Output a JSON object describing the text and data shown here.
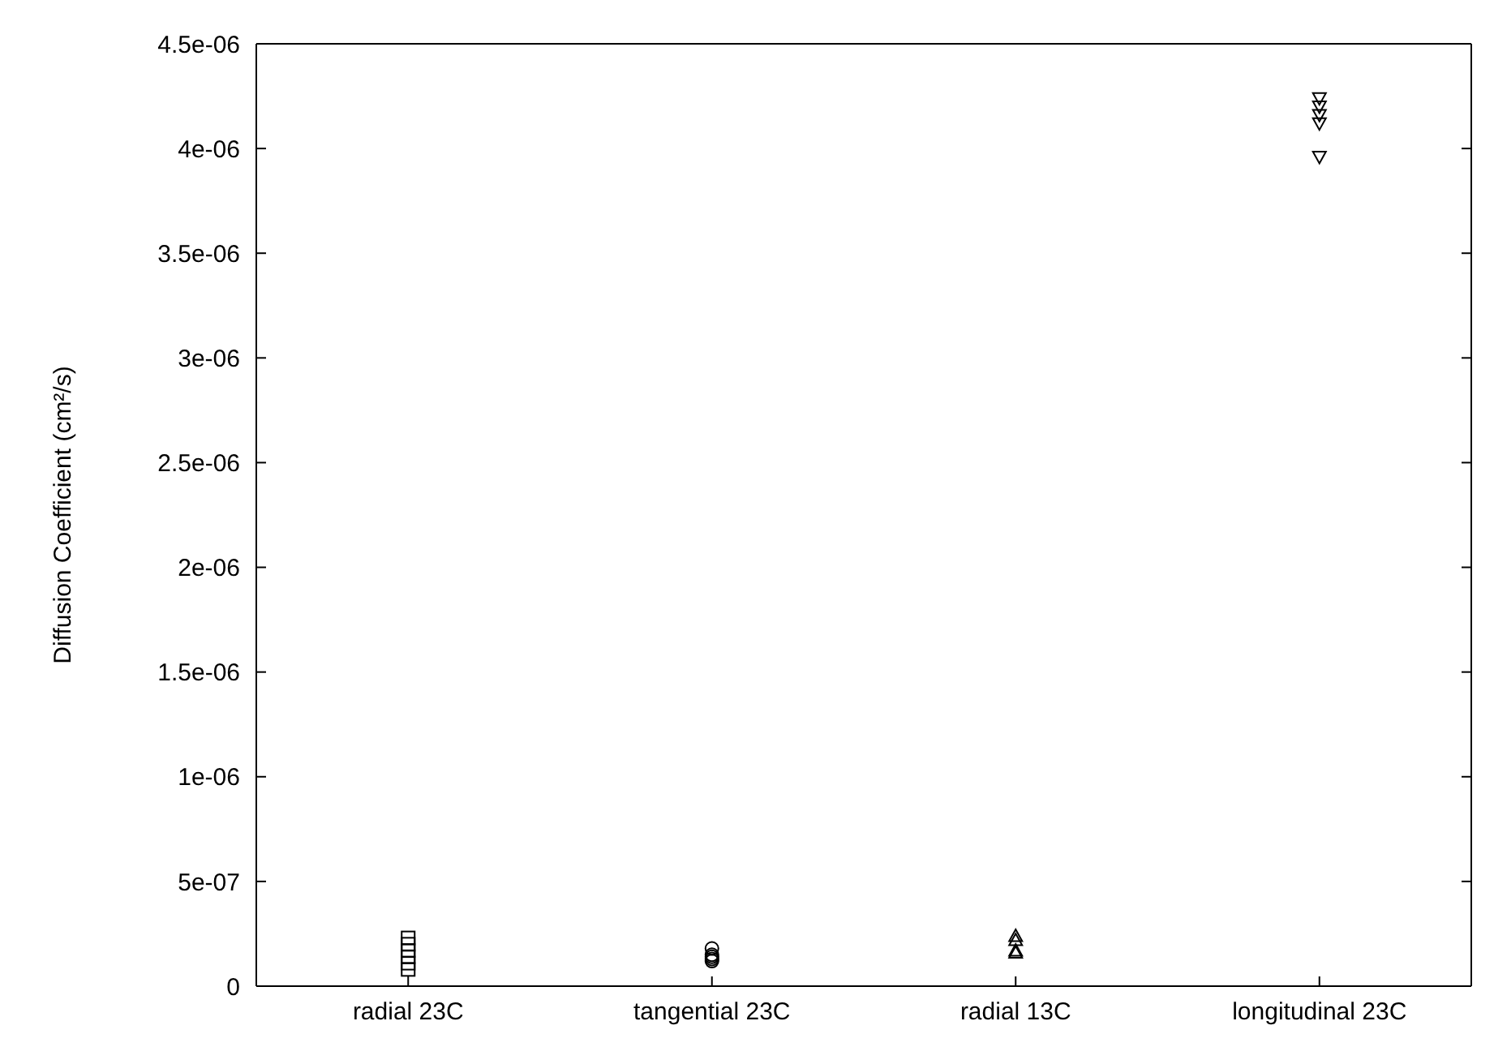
{
  "chart_data": {
    "type": "scatter",
    "ylabel": "Diffusion Coefficient (cm²/s)",
    "categories": [
      "radial 23C",
      "tangential 23C",
      "radial 13C",
      "longitudinal 23C"
    ],
    "series": [
      {
        "color": "#000000",
        "marker": "square",
        "x": [
          "radial 23C",
          "radial 23C",
          "radial 23C",
          "radial 23C",
          "radial 23C",
          "radial 23C"
        ],
        "values": [
          2.3e-07,
          2e-07,
          1.7e-07,
          1.4e-07,
          1.1e-07,
          8e-08
        ]
      },
      {
        "color": "#000000",
        "marker": "circle",
        "x": [
          "tangential 23C",
          "tangential 23C",
          "tangential 23C",
          "tangential 23C",
          "tangential 23C"
        ],
        "values": [
          1.8e-07,
          1.5e-07,
          1.4e-07,
          1.3e-07,
          1.2e-07
        ]
      },
      {
        "color": "#000000",
        "marker": "triangle",
        "x": [
          "radial 13C",
          "radial 13C",
          "radial 13C",
          "radial 13C"
        ],
        "values": [
          2.4e-07,
          2.2e-07,
          1.7e-07,
          1.6e-07
        ]
      },
      {
        "color": "#000000",
        "marker": "triangle-down",
        "x": [
          "longitudinal 23C",
          "longitudinal 23C",
          "longitudinal 23C",
          "longitudinal 23C",
          "longitudinal 23C"
        ],
        "values": [
          4.24e-06,
          4.2e-06,
          4.16e-06,
          4.12e-06,
          3.96e-06
        ]
      }
    ],
    "ylim": [
      0,
      4.5e-06
    ],
    "yticks": [
      0,
      {
        "value": 5e-07,
        "label": "5e-07"
      },
      {
        "value": 1e-06,
        "label": "1e-06"
      },
      {
        "value": 1.5e-06,
        "label": "1.5e-06"
      },
      {
        "value": 2e-06,
        "label": "2e-06"
      },
      {
        "value": 2.5e-06,
        "label": "2.5e-06"
      },
      {
        "value": 3e-06,
        "label": "3e-06"
      },
      {
        "value": 3.5e-06,
        "label": "3.5e-06"
      },
      {
        "value": 4e-06,
        "label": "4e-06"
      },
      {
        "value": 4.5e-06,
        "label": "4.5e-06"
      }
    ],
    "grid": false,
    "legend": false
  }
}
